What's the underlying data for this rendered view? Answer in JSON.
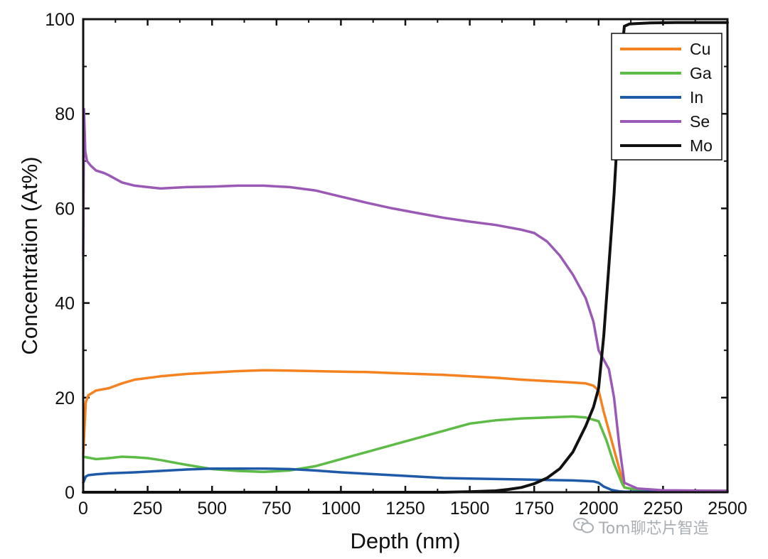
{
  "chart_data": {
    "type": "line",
    "xlabel": "Depth (nm)",
    "ylabel": "Concentration (At%)",
    "xlim": [
      0,
      2500
    ],
    "ylim": [
      0,
      100
    ],
    "xticks": [
      0,
      250,
      500,
      750,
      1000,
      1250,
      1500,
      1750,
      2000,
      2250,
      2500
    ],
    "yticks": [
      0,
      20,
      40,
      60,
      80,
      100
    ],
    "grid": false,
    "legend_position": "top-right",
    "series": [
      {
        "name": "Cu",
        "color": "#f58220",
        "x": [
          0,
          10,
          20,
          50,
          100,
          150,
          200,
          300,
          400,
          500,
          600,
          700,
          800,
          900,
          1000,
          1100,
          1200,
          1300,
          1400,
          1500,
          1600,
          1700,
          1800,
          1900,
          1950,
          1980,
          2000,
          2020,
          2050,
          2080,
          2100,
          2150,
          2250,
          2500
        ],
        "y": [
          8,
          19,
          20.5,
          21.5,
          22,
          23,
          23.8,
          24.5,
          25,
          25.3,
          25.6,
          25.8,
          25.7,
          25.6,
          25.5,
          25.4,
          25.2,
          25,
          24.8,
          24.5,
          24.2,
          23.8,
          23.5,
          23.2,
          23,
          22.5,
          21.5,
          17,
          11,
          5,
          1,
          0.5,
          0.3,
          0.3
        ]
      },
      {
        "name": "Ga",
        "color": "#5dbb46",
        "x": [
          0,
          50,
          100,
          150,
          200,
          250,
          300,
          400,
          500,
          600,
          700,
          800,
          900,
          1000,
          1100,
          1200,
          1300,
          1400,
          1500,
          1600,
          1700,
          1800,
          1900,
          1950,
          2000,
          2030,
          2060,
          2090,
          2100,
          2150,
          2250,
          2500
        ],
        "y": [
          7.5,
          7,
          7.2,
          7.5,
          7.4,
          7.2,
          6.8,
          5.8,
          4.9,
          4.5,
          4.3,
          4.6,
          5.5,
          7,
          8.5,
          10,
          11.5,
          13,
          14.5,
          15.2,
          15.6,
          15.8,
          16,
          15.8,
          15,
          11,
          6,
          2,
          1,
          0.5,
          0.3,
          0.3
        ]
      },
      {
        "name": "In",
        "color": "#1f5aa8",
        "x": [
          0,
          10,
          20,
          50,
          100,
          200,
          300,
          400,
          500,
          600,
          700,
          800,
          900,
          1000,
          1100,
          1200,
          1300,
          1400,
          1500,
          1600,
          1700,
          1800,
          1900,
          1980,
          2000,
          2020,
          2050,
          2080,
          2100,
          2200,
          2500
        ],
        "y": [
          2,
          3.3,
          3.6,
          3.8,
          4,
          4.2,
          4.5,
          4.8,
          5,
          5,
          5,
          4.9,
          4.6,
          4.2,
          3.9,
          3.6,
          3.3,
          3,
          2.9,
          2.8,
          2.7,
          2.6,
          2.5,
          2.3,
          2,
          1.2,
          0.5,
          0.2,
          0.1,
          0.1,
          0.1
        ]
      },
      {
        "name": "Se",
        "color": "#9b59b6",
        "x": [
          0,
          3,
          8,
          15,
          30,
          50,
          80,
          100,
          150,
          200,
          300,
          400,
          500,
          600,
          700,
          800,
          900,
          1000,
          1100,
          1200,
          1300,
          1400,
          1500,
          1600,
          1700,
          1750,
          1800,
          1850,
          1900,
          1950,
          1980,
          2000,
          2020,
          2040,
          2060,
          2080,
          2100,
          2150,
          2250,
          2500
        ],
        "y": [
          50,
          81,
          72,
          70,
          69,
          68,
          67.5,
          67,
          65.5,
          64.8,
          64.2,
          64.5,
          64.6,
          64.8,
          64.8,
          64.5,
          63.8,
          62.5,
          61.2,
          60,
          59,
          58,
          57.2,
          56.5,
          55.5,
          54.8,
          53,
          50,
          46,
          41,
          36,
          30,
          28,
          26,
          20,
          10,
          2,
          0.8,
          0.4,
          0.3
        ]
      },
      {
        "name": "Mo",
        "color": "#111111",
        "x": [
          0,
          1200,
          1400,
          1500,
          1600,
          1650,
          1700,
          1750,
          1800,
          1850,
          1900,
          1950,
          1980,
          2000,
          2020,
          2040,
          2060,
          2080,
          2090,
          2100,
          2120,
          2200,
          2300,
          2500
        ],
        "y": [
          0,
          0,
          0,
          0.1,
          0.3,
          0.6,
          1,
          1.8,
          3,
          5,
          8.5,
          14,
          18,
          22,
          33,
          48,
          63,
          82,
          93,
          98.5,
          99,
          99.2,
          99.3,
          99.3
        ]
      }
    ]
  },
  "watermark": {
    "icon": "wechat-icon",
    "text": "Tom聊芯片智造"
  }
}
